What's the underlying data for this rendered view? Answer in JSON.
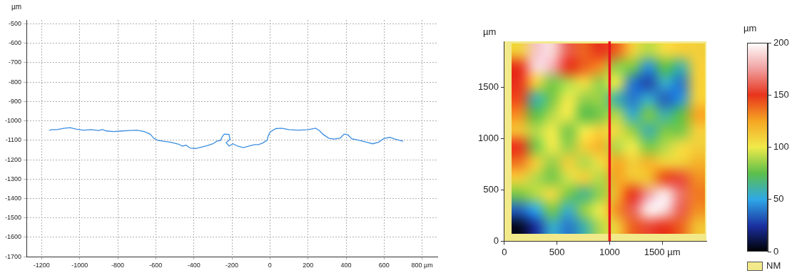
{
  "chart_data": [
    {
      "type": "line",
      "ylabel": "µm",
      "color": "#3c8ee0",
      "grid": true,
      "xlim": [
        -1280,
        880
      ],
      "ylim": [
        -1700,
        -480
      ],
      "xticks": [
        -1200,
        -1000,
        -800,
        -600,
        -400,
        -200,
        0,
        200,
        400,
        600,
        {
          "value": 800,
          "label": "800 µm"
        }
      ],
      "yticks": [
        -1700,
        -1600,
        -1500,
        -1400,
        -1300,
        -1200,
        -1100,
        -1000,
        -900,
        -800,
        -700,
        -600,
        -500
      ],
      "x": [
        -1160,
        -1150,
        -1120,
        -1080,
        -1050,
        -1020,
        -980,
        -940,
        -900,
        -880,
        -860,
        -820,
        -780,
        -740,
        -700,
        -660,
        -630,
        -610,
        -590,
        -560,
        -520,
        -480,
        -460,
        -440,
        -420,
        -390,
        -360,
        -330,
        -300,
        -280,
        -260,
        -250,
        -240,
        -215,
        -210,
        -230,
        -215,
        -195,
        -170,
        -140,
        -110,
        -80,
        -60,
        -40,
        -15,
        -10,
        0,
        30,
        60,
        100,
        150,
        200,
        240,
        260,
        280,
        310,
        340,
        370,
        390,
        410,
        430,
        470,
        510,
        540,
        570,
        600,
        630,
        660,
        700
      ],
      "values": [
        -1050,
        -1045,
        -1045,
        -1038,
        -1035,
        -1042,
        -1048,
        -1045,
        -1050,
        -1044,
        -1052,
        -1055,
        -1052,
        -1050,
        -1048,
        -1055,
        -1068,
        -1090,
        -1100,
        -1105,
        -1110,
        -1120,
        -1130,
        -1125,
        -1140,
        -1142,
        -1135,
        -1128,
        -1118,
        -1105,
        -1100,
        -1080,
        -1068,
        -1070,
        -1095,
        -1112,
        -1130,
        -1118,
        -1130,
        -1138,
        -1130,
        -1122,
        -1122,
        -1115,
        -1100,
        -1080,
        -1058,
        -1040,
        -1038,
        -1045,
        -1048,
        -1045,
        -1038,
        -1050,
        -1070,
        -1090,
        -1094,
        -1088,
        -1068,
        -1072,
        -1092,
        -1100,
        -1110,
        -1118,
        -1110,
        -1090,
        -1085,
        -1095,
        -1105
      ]
    },
    {
      "type": "heatmap",
      "ylabel": "µm",
      "grid": false,
      "xlim": [
        0,
        1920
      ],
      "ylim": [
        0,
        1950
      ],
      "xticks": [
        0,
        500,
        1000,
        {
          "value": 1500,
          "label": "1500 µm"
        }
      ],
      "yticks": [
        0,
        500,
        1000,
        1500
      ],
      "x0": 70,
      "dx": 153,
      "y0": 70,
      "dy": 155,
      "cells": [
        [
          5,
          25,
          55,
          40,
          60,
          90,
          110,
          140,
          155,
          150,
          140,
          115
        ],
        [
          35,
          50,
          80,
          55,
          85,
          100,
          130,
          160,
          195,
          190,
          160,
          130
        ],
        [
          80,
          90,
          105,
          80,
          65,
          85,
          120,
          150,
          175,
          195,
          165,
          135
        ],
        [
          110,
          90,
          80,
          95,
          110,
          90,
          125,
          115,
          115,
          145,
          155,
          130
        ],
        [
          135,
          110,
          85,
          110,
          90,
          105,
          125,
          110,
          120,
          110,
          110,
          120
        ],
        [
          150,
          80,
          100,
          85,
          110,
          120,
          90,
          100,
          80,
          90,
          105,
          110
        ],
        [
          115,
          90,
          100,
          80,
          100,
          110,
          105,
          85,
          60,
          80,
          80,
          110
        ],
        [
          130,
          75,
          90,
          100,
          75,
          80,
          90,
          55,
          80,
          60,
          75,
          125
        ],
        [
          145,
          60,
          80,
          100,
          85,
          85,
          60,
          40,
          55,
          35,
          45,
          110
        ],
        [
          150,
          110,
          80,
          90,
          105,
          85,
          100,
          40,
          30,
          55,
          40,
          110
        ],
        [
          150,
          190,
          180,
          150,
          140,
          130,
          85,
          80,
          45,
          75,
          60,
          110
        ],
        [
          110,
          185,
          190,
          160,
          140,
          150,
          140,
          110,
          90,
          105,
          110,
          110
        ]
      ],
      "section": {
        "x": 1000,
        "color": "#e8141c"
      },
      "not_measured": {
        "label": "NM",
        "color": "#f2e98a"
      },
      "colorbar": {
        "range": [
          0,
          200
        ],
        "ticks": [
          0,
          50,
          100,
          150,
          200
        ],
        "label": "µm"
      }
    }
  ]
}
